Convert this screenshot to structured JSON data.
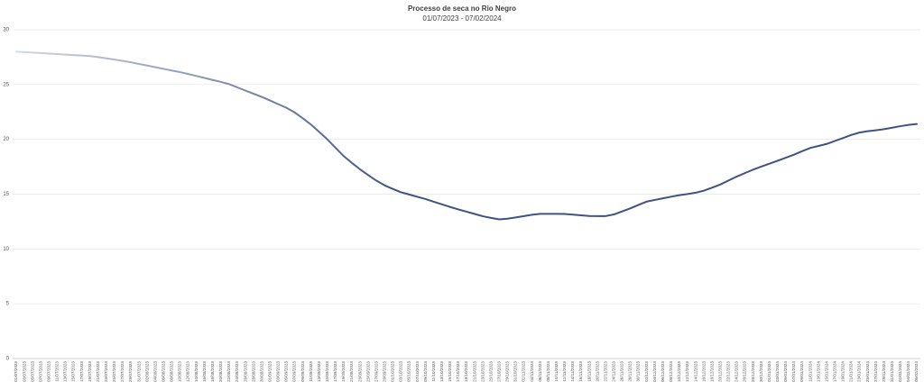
{
  "chart_data": {
    "type": "line",
    "title": "Processo de seca no Rio Negro",
    "subtitle": "01/07/2023 - 07/02/2024",
    "categories": [
      "01/07/2023",
      "03/07/2023",
      "05/07/2023",
      "07/07/2023",
      "09/07/2023",
      "11/07/2023",
      "13/07/2023",
      "15/07/2023",
      "17/07/2023",
      "19/07/2023",
      "21/07/2023",
      "23/07/2023",
      "25/07/2023",
      "27/07/2023",
      "29/07/2023",
      "31/07/2023",
      "02/08/2023",
      "04/08/2023",
      "06/08/2023",
      "08/08/2023",
      "10/08/2023",
      "12/08/2023",
      "14/08/2023",
      "16/08/2023",
      "18/08/2023",
      "20/08/2023",
      "22/08/2023",
      "24/08/2023",
      "26/08/2023",
      "28/08/2023",
      "30/08/2023",
      "01/09/2023",
      "03/09/2023",
      "05/09/2023",
      "07/09/2023",
      "09/09/2023",
      "11/09/2023",
      "13/09/2023",
      "15/09/2023",
      "17/09/2023",
      "19/09/2023",
      "21/09/2023",
      "23/09/2023",
      "25/09/2023",
      "27/09/2023",
      "29/09/2023",
      "01/10/2023",
      "03/10/2023",
      "05/10/2023",
      "07/10/2023",
      "09/10/2023",
      "11/10/2023",
      "13/10/2023",
      "15/10/2023",
      "17/10/2023",
      "19/10/2023",
      "21/10/2023",
      "23/10/2023",
      "25/10/2023",
      "27/10/2023",
      "29/10/2023",
      "31/10/2023",
      "02/11/2023",
      "04/11/2023",
      "06/11/2023",
      "08/11/2023",
      "10/11/2023",
      "12/11/2023",
      "14/11/2023",
      "16/11/2023",
      "18/11/2023",
      "20/11/2023",
      "22/11/2023",
      "24/11/2023",
      "26/11/2023",
      "28/11/2023",
      "30/11/2023",
      "02/12/2023",
      "04/12/2023",
      "06/12/2023",
      "08/12/2023",
      "10/12/2023",
      "12/12/2023",
      "14/12/2023",
      "16/12/2023",
      "18/12/2023",
      "20/12/2023",
      "22/12/2023",
      "24/12/2023",
      "26/12/2023",
      "28/12/2023",
      "30/12/2023",
      "01/01/2024",
      "03/01/2024",
      "05/01/2024",
      "07/01/2024",
      "09/01/2024",
      "11/01/2024",
      "13/01/2024",
      "15/01/2024",
      "17/01/2024",
      "19/01/2024",
      "21/01/2024",
      "23/01/2024",
      "25/01/2024",
      "27/01/2024",
      "29/01/2024",
      "31/01/2024",
      "02/02/2024",
      "04/02/2024",
      "06/02/2024"
    ],
    "values": [
      28.0,
      27.96,
      27.91,
      27.87,
      27.82,
      27.78,
      27.73,
      27.69,
      27.65,
      27.6,
      27.5,
      27.39,
      27.28,
      27.16,
      27.03,
      26.88,
      26.73,
      26.58,
      26.43,
      26.28,
      26.13,
      25.96,
      25.78,
      25.6,
      25.42,
      25.24,
      25.04,
      24.74,
      24.45,
      24.16,
      23.87,
      23.54,
      23.21,
      22.88,
      22.46,
      21.92,
      21.35,
      20.68,
      20.0,
      19.23,
      18.47,
      17.85,
      17.26,
      16.73,
      16.23,
      15.8,
      15.48,
      15.17,
      14.97,
      14.76,
      14.55,
      14.31,
      14.07,
      13.83,
      13.61,
      13.4,
      13.19,
      12.98,
      12.83,
      12.7,
      12.76,
      12.87,
      13.0,
      13.12,
      13.2,
      13.2,
      13.2,
      13.19,
      13.13,
      13.07,
      13.01,
      13.0,
      13.0,
      13.15,
      13.42,
      13.7,
      14.02,
      14.32,
      14.47,
      14.62,
      14.77,
      14.91,
      15.01,
      15.13,
      15.32,
      15.59,
      15.88,
      16.24,
      16.6,
      16.92,
      17.23,
      17.51,
      17.78,
      18.05,
      18.32,
      18.6,
      18.92,
      19.22,
      19.4,
      19.58,
      19.85,
      20.12,
      20.4,
      20.62,
      20.74,
      20.83,
      20.93,
      21.06,
      21.2,
      21.32,
      21.4
    ],
    "color_gradient": [
      "#d3d8e8",
      "#3e5382"
    ],
    "ylim": [
      0,
      30
    ],
    "yticks": [
      0,
      5,
      10,
      15,
      20,
      25,
      30
    ],
    "grid": true
  }
}
